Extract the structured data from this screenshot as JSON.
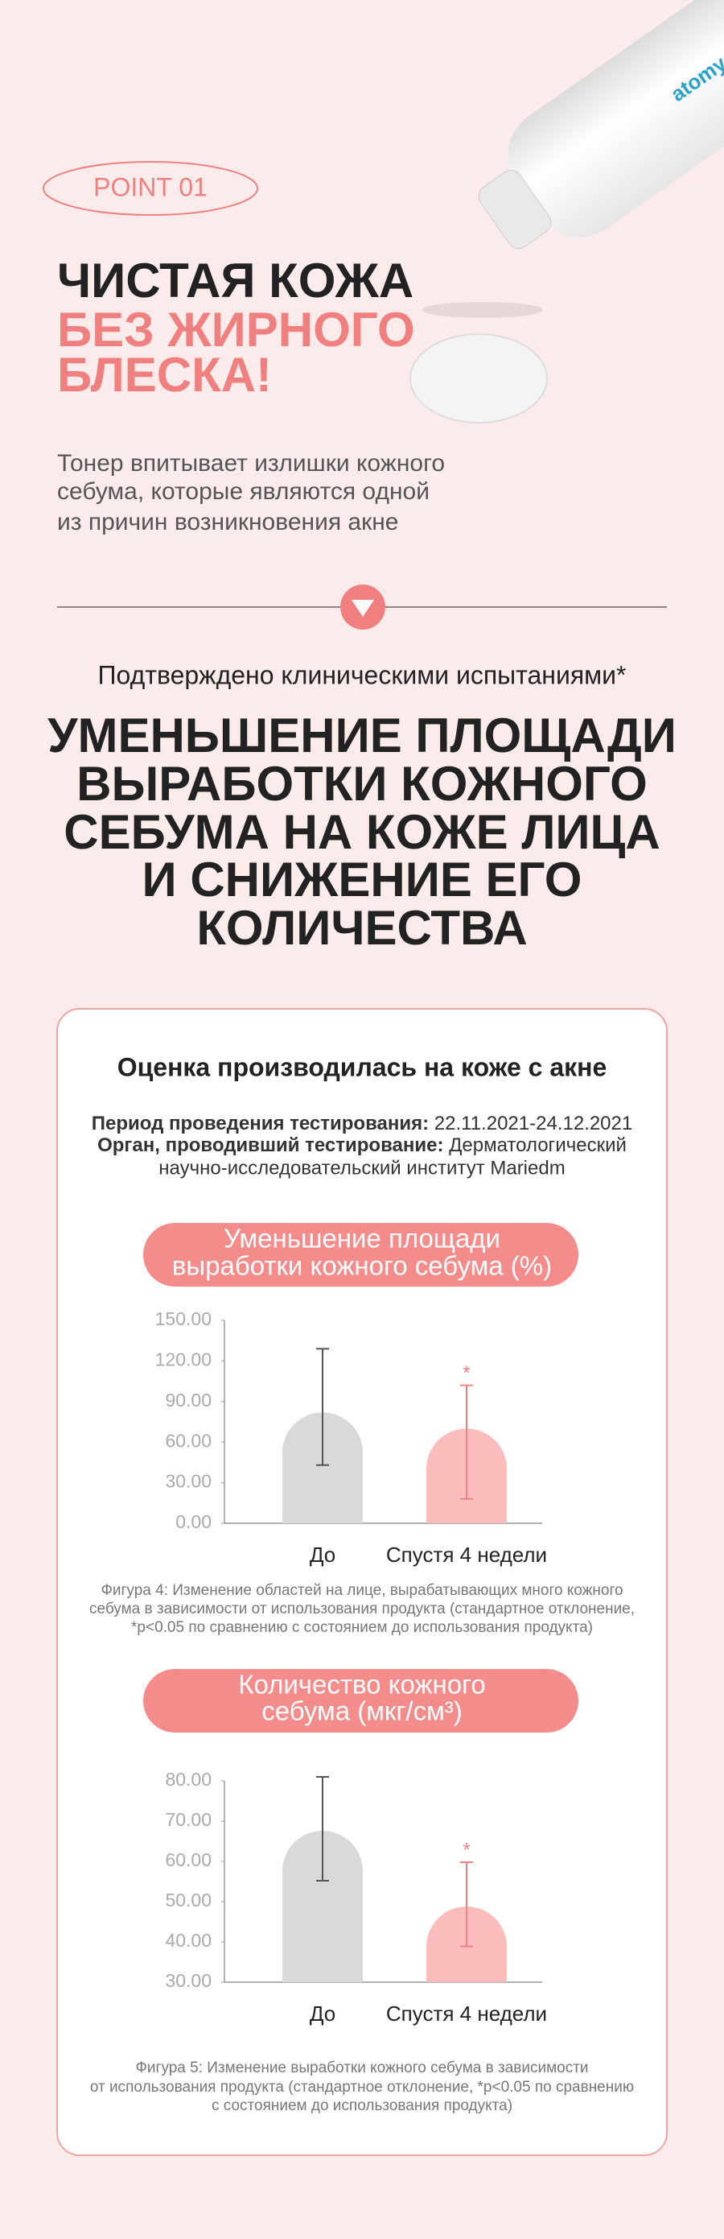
{
  "product": {
    "brand": "atomy"
  },
  "point": {
    "badge": "POINT 01",
    "heading": [
      "ЧИСТАЯ КОЖА",
      "БЕЗ ЖИРНОГО",
      "БЛЕСКА!"
    ],
    "text": [
      "Тонер впитывает излишки кожного",
      "себума, которые являются одной",
      "из причин возникновения акне"
    ]
  },
  "claim": {
    "subtitle": "Подтверждено клиническими испытаниями*",
    "title": [
      "УМЕНЬШЕНИЕ ПЛОЩАДИ",
      "ВЫРАБОТКИ КОЖНОГО",
      "СЕБУМА НА КОЖЕ ЛИЦА",
      "И СНИЖЕНИЕ ЕГО",
      "КОЛИЧЕСТВА"
    ]
  },
  "study": {
    "heading": "Оценка производилась на коже с акне",
    "period": {
      "label": "Период проведения тестирования:",
      "value": "22.11.2021-24.12.2021"
    },
    "organ": {
      "label": "Орган, проводивший тестирование:",
      "value": "Дерматологический",
      "value_cont": "научно-исследовательский институт Mariedm"
    }
  },
  "chart_data": [
    {
      "type": "bar",
      "title": [
        "Уменьшение площади",
        "выработки кожного себума (%)"
      ],
      "categories": [
        "До",
        "Спустя 4 недели"
      ],
      "values": [
        82,
        70
      ],
      "colors": [
        "#d9d9d9",
        "#fbbcbc"
      ],
      "error_colors": [
        "#555555",
        "#f08080"
      ],
      "error_bars": [
        [
          43,
          129
        ],
        [
          18,
          102
        ]
      ],
      "significance_markers": [
        null,
        "*"
      ],
      "ylim": [
        0,
        150
      ],
      "yticks": [
        {
          "value": 0,
          "label": "0.00"
        },
        {
          "value": 30,
          "label": "30.00"
        },
        {
          "value": 60,
          "label": "60.00"
        },
        {
          "value": 90,
          "label": "90.00"
        },
        {
          "value": 120,
          "label": "120.00"
        },
        {
          "value": 150,
          "label": "150.00"
        }
      ],
      "caption": [
        "Фигура 4: Изменение областей на лице, вырабатывающих много кожного",
        "себума в зависимости от использования продукта  (стандартное отклонение,",
        "*p<0.05 по сравнению с состоянием до использования продукта)"
      ]
    },
    {
      "type": "bar",
      "title": [
        "Количество кожного",
        "себума (мкг/см³)"
      ],
      "categories": [
        "До",
        "Спустя 4 недели"
      ],
      "values": [
        67.6,
        48.8
      ],
      "colors": [
        "#d9d9d9",
        "#fbbcbc"
      ],
      "error_colors": [
        "#555555",
        "#f08080"
      ],
      "error_bars": [
        [
          55.2,
          81
        ],
        [
          38.9,
          59.8
        ]
      ],
      "significance_markers": [
        null,
        "*"
      ],
      "ylim": [
        30,
        80
      ],
      "yticks": [
        {
          "value": 30,
          "label": "30.00"
        },
        {
          "value": 40,
          "label": "40.00"
        },
        {
          "value": 50,
          "label": "50.00"
        },
        {
          "value": 60,
          "label": "60.00"
        },
        {
          "value": 70,
          "label": "70.00"
        },
        {
          "value": 80,
          "label": "80.00"
        }
      ],
      "caption": [
        "Фигура 5: Изменение выработки кожного себума в зависимости",
        "от использования продукта (стандартное отклонение, *p<0.05 по сравнению",
        "с состоянием до использования продукта)"
      ]
    }
  ]
}
